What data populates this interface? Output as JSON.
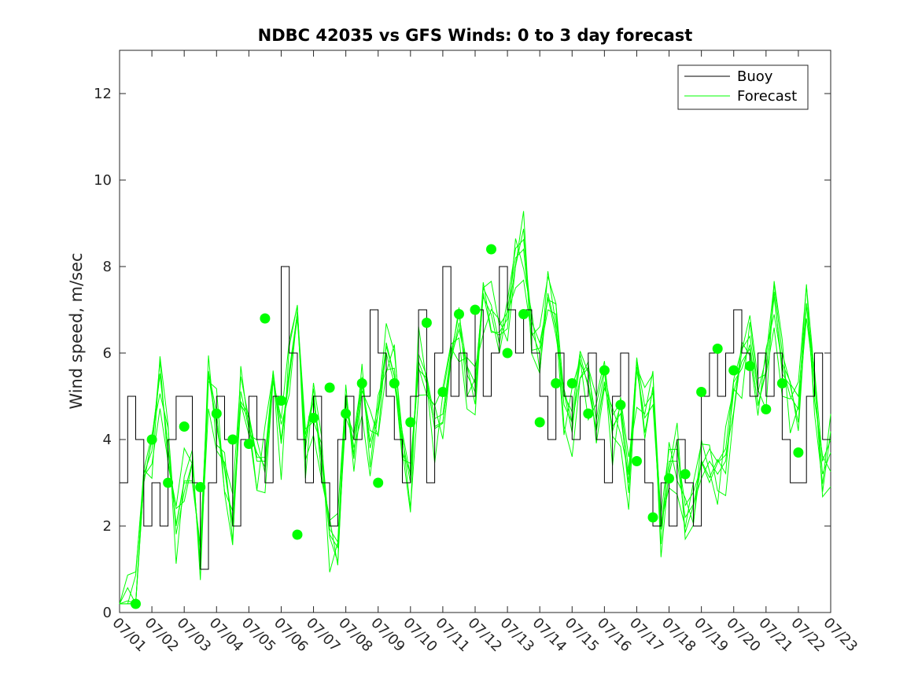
{
  "chart_data": {
    "type": "line",
    "title": "NDBC 42035 vs GFS Winds: 0 to 3 day forecast",
    "xlabel": "",
    "ylabel": "Wind speed, m/sec",
    "xlim": [
      "07/01",
      "07/23"
    ],
    "ylim": [
      0,
      13
    ],
    "yticks": [
      0,
      2,
      4,
      6,
      8,
      10,
      12
    ],
    "xticks": [
      "07/01",
      "07/02",
      "07/03",
      "07/04",
      "07/05",
      "07/06",
      "07/07",
      "07/08",
      "07/09",
      "07/10",
      "07/11",
      "07/12",
      "07/13",
      "07/14",
      "07/15",
      "07/16",
      "07/17",
      "07/18",
      "07/19",
      "07/20",
      "07/21",
      "07/22",
      "07/23"
    ],
    "grid": false,
    "legend": {
      "location": "top-right",
      "entries": [
        "Buoy",
        "Forecast"
      ]
    },
    "colors": {
      "buoy": "#000000",
      "forecast": "#00ff00"
    },
    "series": [
      {
        "name": "Buoy",
        "style": "step-line",
        "x": [
          "07/01 00:00",
          "07/01 06:00",
          "07/01 12:00",
          "07/01 18:00",
          "07/02 00:00",
          "07/02 06:00",
          "07/02 12:00",
          "07/02 18:00",
          "07/03 00:00",
          "07/03 06:00",
          "07/03 12:00",
          "07/03 18:00",
          "07/04 00:00",
          "07/04 06:00",
          "07/04 12:00",
          "07/04 18:00",
          "07/05 00:00",
          "07/05 06:00",
          "07/05 12:00",
          "07/05 18:00",
          "07/06 00:00",
          "07/06 06:00",
          "07/06 12:00",
          "07/06 18:00",
          "07/07 00:00",
          "07/07 06:00",
          "07/07 12:00",
          "07/07 18:00",
          "07/08 00:00",
          "07/08 06:00",
          "07/08 12:00",
          "07/08 18:00",
          "07/09 00:00",
          "07/09 06:00",
          "07/09 12:00",
          "07/09 18:00",
          "07/10 00:00",
          "07/10 06:00",
          "07/10 12:00",
          "07/10 18:00",
          "07/11 00:00",
          "07/11 06:00",
          "07/11 12:00",
          "07/11 18:00",
          "07/12 00:00",
          "07/12 06:00",
          "07/12 12:00",
          "07/12 18:00",
          "07/13 00:00",
          "07/13 06:00",
          "07/13 12:00",
          "07/13 18:00",
          "07/14 00:00",
          "07/14 06:00",
          "07/14 12:00",
          "07/14 18:00",
          "07/15 00:00",
          "07/15 06:00",
          "07/15 12:00",
          "07/15 18:00",
          "07/16 00:00",
          "07/16 06:00",
          "07/16 12:00",
          "07/16 18:00",
          "07/17 00:00",
          "07/17 06:00",
          "07/17 12:00",
          "07/17 18:00",
          "07/18 00:00",
          "07/18 06:00",
          "07/18 12:00",
          "07/18 18:00",
          "07/19 00:00",
          "07/19 06:00",
          "07/19 12:00",
          "07/19 18:00",
          "07/20 00:00",
          "07/20 06:00",
          "07/20 12:00",
          "07/20 18:00",
          "07/21 00:00",
          "07/21 06:00",
          "07/21 12:00",
          "07/21 18:00",
          "07/22 00:00",
          "07/22 06:00",
          "07/22 12:00",
          "07/22 18:00",
          "07/23 00:00"
        ],
        "values": [
          3,
          5,
          4,
          2,
          3,
          2,
          4,
          5,
          5,
          3,
          1,
          3,
          5,
          4,
          2,
          4,
          5,
          4,
          3,
          5,
          8,
          6,
          4,
          3,
          5,
          3,
          2,
          4,
          5,
          4,
          5,
          7,
          6,
          5,
          4,
          3,
          5,
          7,
          3,
          6,
          8,
          5,
          6,
          5,
          7,
          5,
          6,
          8,
          7,
          6,
          7,
          6,
          5,
          4,
          6,
          5,
          4,
          5,
          6,
          4,
          3,
          5,
          6,
          4,
          4,
          3,
          2,
          3,
          2,
          4,
          3,
          2,
          5,
          6,
          5,
          6,
          7,
          6,
          5,
          6,
          5,
          6,
          4,
          3,
          3,
          5,
          6,
          4,
          4
        ]
      },
      {
        "name": "Forecast",
        "style": "multiple overlapping forecast runs",
        "x": [
          "07/01 00:00",
          "07/01 06:00",
          "07/01 12:00",
          "07/01 18:00",
          "07/02 00:00",
          "07/02 06:00",
          "07/02 12:00",
          "07/02 18:00",
          "07/03 00:00",
          "07/03 06:00",
          "07/03 12:00",
          "07/03 18:00",
          "07/04 00:00",
          "07/04 06:00",
          "07/04 12:00",
          "07/04 18:00",
          "07/05 00:00",
          "07/05 06:00",
          "07/05 12:00",
          "07/05 18:00",
          "07/06 00:00",
          "07/06 06:00",
          "07/06 12:00",
          "07/06 18:00",
          "07/07 00:00",
          "07/07 06:00",
          "07/07 12:00",
          "07/07 18:00",
          "07/08 00:00",
          "07/08 06:00",
          "07/08 12:00",
          "07/08 18:00",
          "07/09 00:00",
          "07/09 06:00",
          "07/09 12:00",
          "07/09 18:00",
          "07/10 00:00",
          "07/10 06:00",
          "07/10 12:00",
          "07/10 18:00",
          "07/11 00:00",
          "07/11 06:00",
          "07/11 12:00",
          "07/11 18:00",
          "07/12 00:00",
          "07/12 06:00",
          "07/12 12:00",
          "07/12 18:00",
          "07/13 00:00",
          "07/13 06:00",
          "07/13 12:00",
          "07/13 18:00",
          "07/14 00:00",
          "07/14 06:00",
          "07/14 12:00",
          "07/14 18:00",
          "07/15 00:00",
          "07/15 06:00",
          "07/15 12:00",
          "07/15 18:00",
          "07/16 00:00",
          "07/16 06:00",
          "07/16 12:00",
          "07/16 18:00",
          "07/17 00:00",
          "07/17 06:00",
          "07/17 12:00",
          "07/17 18:00",
          "07/18 00:00",
          "07/18 06:00",
          "07/18 12:00",
          "07/18 18:00",
          "07/19 00:00",
          "07/19 06:00",
          "07/19 12:00",
          "07/19 18:00",
          "07/20 00:00",
          "07/20 06:00",
          "07/20 12:00",
          "07/20 18:00",
          "07/21 00:00",
          "07/21 06:00",
          "07/21 12:00",
          "07/21 18:00",
          "07/22 00:00",
          "07/22 06:00",
          "07/22 12:00",
          "07/22 18:00",
          "07/23 00:00"
        ],
        "values": [
          0.2,
          0.2,
          0.2,
          3.0,
          4.0,
          5.5,
          3.8,
          2.0,
          3.0,
          3.0,
          1.5,
          5.5,
          4.3,
          3.3,
          2.0,
          4.8,
          4.5,
          3.5,
          3.5,
          5.5,
          3.9,
          5.5,
          6.8,
          4.0,
          4.9,
          3.5,
          1.8,
          1.5,
          4.5,
          4.0,
          5.3,
          3.8,
          4.6,
          6.0,
          5.3,
          4.0,
          3.0,
          5.8,
          5.3,
          4.3,
          4.4,
          5.8,
          6.7,
          5.5,
          5.1,
          7.3,
          6.9,
          6.0,
          7.0,
          8.2,
          8.4,
          6.5,
          6.0,
          7.0,
          6.9,
          4.8,
          4.4,
          5.8,
          5.3,
          4.2,
          5.3,
          4.3,
          4.6,
          3.0,
          5.6,
          4.5,
          4.8,
          2.0,
          3.5,
          3.5,
          2.2,
          2.5,
          3.1,
          3.5,
          3.2,
          3.5,
          5.1,
          5.8,
          6.1,
          4.8,
          5.6,
          7.3,
          5.7,
          5.0,
          4.7,
          6.8,
          5.3,
          3.2,
          3.7
        ]
      },
      {
        "name": "",
        "style": "markers",
        "x": [
          "07/01 12:00",
          "07/02 00:00",
          "07/02 12:00",
          "07/03 00:00",
          "07/03 12:00",
          "07/04 00:00",
          "07/04 12:00",
          "07/05 00:00",
          "07/05 12:00",
          "07/06 00:00",
          "07/06 12:00",
          "07/07 00:00",
          "07/07 12:00",
          "07/08 00:00",
          "07/08 12:00",
          "07/09 00:00",
          "07/09 12:00",
          "07/10 00:00",
          "07/10 12:00",
          "07/11 00:00",
          "07/11 12:00",
          "07/12 00:00",
          "07/12 12:00",
          "07/13 00:00",
          "07/13 12:00",
          "07/14 00:00",
          "07/14 12:00",
          "07/15 00:00",
          "07/15 12:00",
          "07/16 00:00",
          "07/16 12:00",
          "07/17 00:00",
          "07/17 12:00",
          "07/18 00:00",
          "07/18 12:00",
          "07/19 00:00",
          "07/19 12:00",
          "07/20 00:00",
          "07/20 12:00",
          "07/21 00:00",
          "07/21 12:00",
          "07/22 00:00"
        ],
        "values": [
          0.2,
          4.0,
          3.0,
          4.3,
          2.9,
          4.6,
          4.0,
          3.9,
          6.8,
          4.9,
          1.8,
          4.5,
          5.2,
          4.6,
          5.3,
          3.0,
          5.3,
          4.4,
          6.7,
          5.1,
          6.9,
          7.0,
          8.4,
          6.0,
          6.9,
          4.4,
          5.3,
          5.3,
          4.6,
          5.6,
          4.8,
          3.5,
          2.2,
          3.1,
          3.2,
          5.1,
          6.1,
          5.6,
          5.7,
          4.7,
          5.3,
          3.7
        ]
      }
    ]
  }
}
